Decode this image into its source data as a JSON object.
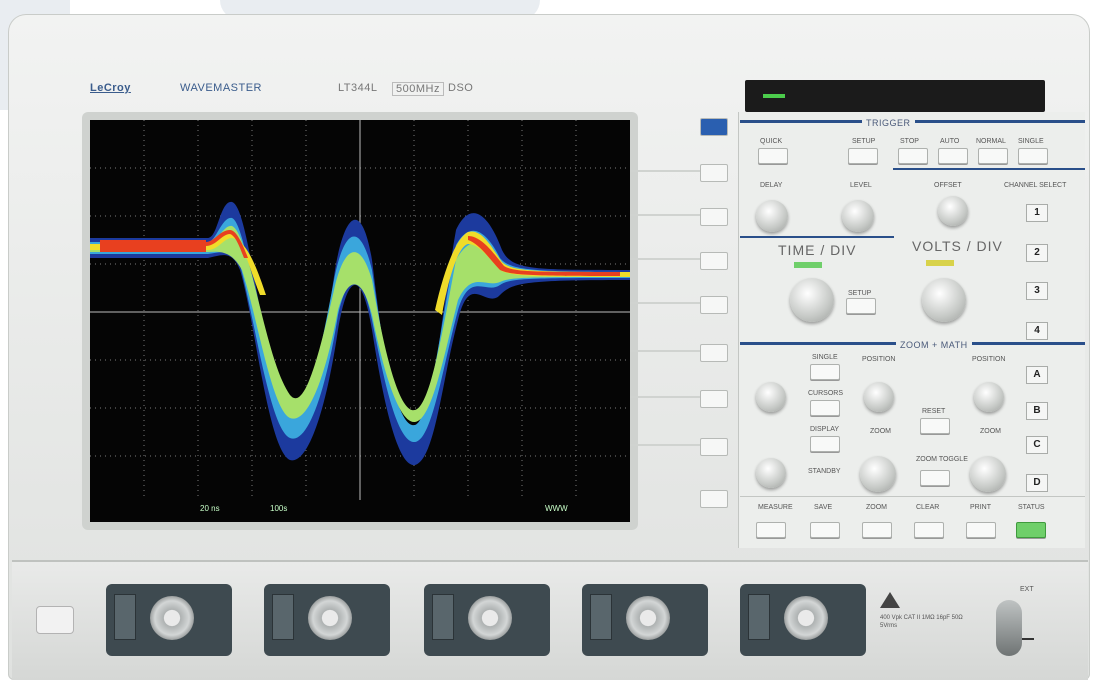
{
  "device": {
    "brand": "LeCroy",
    "product_line": "WAVEMASTER",
    "model": "LT344L",
    "tags": [
      "500MHz",
      "DSO"
    ]
  },
  "screen": {
    "status_left": "20 ns",
    "status_mid": "100s",
    "status_right": "WWW"
  },
  "panel": {
    "trigger_label": "TRIGGER",
    "time_div_label": "TIME / DIV",
    "volts_div_label": "VOLTS / DIV",
    "zoom_label": "ZOOM + MATH",
    "offset_label": "OFFSET",
    "position_label": "POSITION",
    "delay_label": "DELAY",
    "level_label": "LEVEL",
    "zoom_knob_label": "ZOOM",
    "trigger_buttons": [
      "STOP",
      "AUTO",
      "NORMAL",
      "SINGLE"
    ],
    "top_buttons": [
      "QUICK",
      "SETUP",
      "SETUP"
    ],
    "channel_buttons": [
      "1",
      "2",
      "3",
      "4"
    ],
    "math_buttons": [
      "A",
      "B",
      "C",
      "D"
    ],
    "bottom_buttons": [
      "MEASURE",
      "SAVE",
      "ZOOM",
      "CLEAR",
      "PRINT",
      "STATUS"
    ],
    "mid_buttons": [
      "SINGLE",
      "CURSORS",
      "DISPLAY",
      "STANDBY"
    ],
    "reset_label": "RESET",
    "zoom_toggle_label": "ZOOM TOGGLE",
    "channel_select_label": "CHANNEL SELECT"
  },
  "colors": {
    "trace_red": "#e8401f",
    "trace_yellow": "#f0dc2a",
    "trace_green": "#a6e06a",
    "trace_blue": "#1f3fa6",
    "trace_cyan": "#40b8e8",
    "panel_accent": "#2a4f8a",
    "status_green": "#6fcf6a"
  },
  "front": {
    "power_icon": "power-switch",
    "channel_count": 5,
    "warning_text": "400 Vpk CAT II 1MΩ 16pF 50Ω 5Vrms",
    "ext_label": "EXT"
  }
}
